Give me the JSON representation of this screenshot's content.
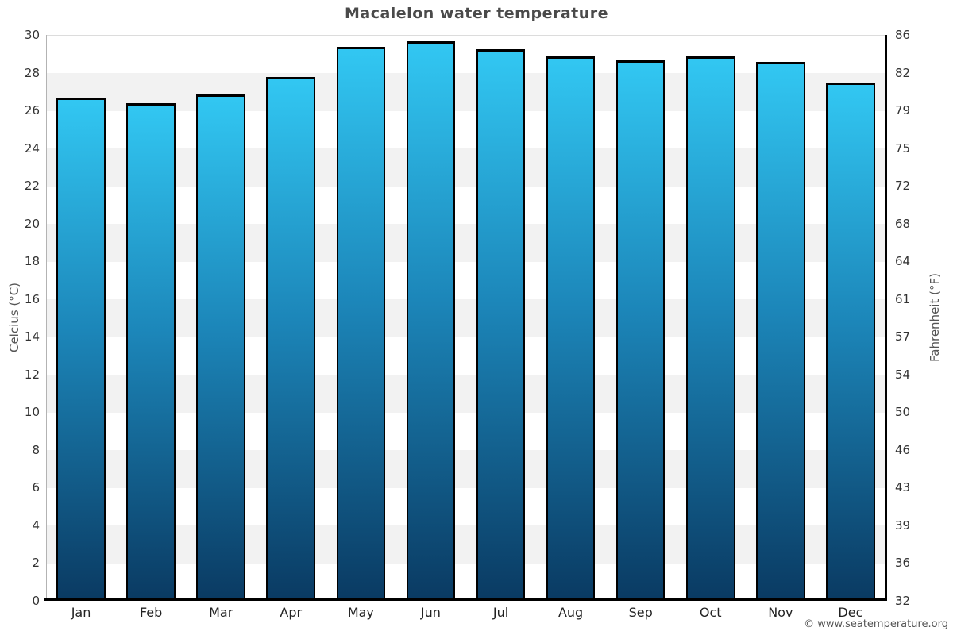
{
  "page": {
    "copyright": "© www.seatemperature.org"
  },
  "axes": {
    "left_label": "Celcius (°C)",
    "right_label": "Fahrenheit (°F)",
    "celsius_ticks": [
      "30",
      "28",
      "26",
      "24",
      "22",
      "20",
      "18",
      "16",
      "14",
      "12",
      "10",
      "8",
      "6",
      "4",
      "2",
      "0"
    ],
    "fahrenheit_ticks": [
      "86",
      "82",
      "79",
      "75",
      "72",
      "68",
      "64",
      "61",
      "57",
      "54",
      "50",
      "46",
      "43",
      "39",
      "36",
      "32"
    ]
  },
  "chart_data": {
    "type": "bar",
    "title": "Macalelon water temperature",
    "categories": [
      "Jan",
      "Feb",
      "Mar",
      "Apr",
      "May",
      "Jun",
      "Jul",
      "Aug",
      "Sep",
      "Oct",
      "Nov",
      "Dec"
    ],
    "values": [
      26.7,
      26.4,
      26.9,
      27.8,
      29.4,
      29.7,
      29.3,
      28.9,
      28.7,
      28.9,
      28.6,
      27.5
    ],
    "unit": "°C",
    "ylabel_left": "Celcius (°C)",
    "ylabel_right": "Fahrenheit (°F)",
    "ylim": [
      0,
      30
    ],
    "band_step": 2,
    "grid": "alternating-horizontal-bands",
    "legend": "none",
    "colors": {
      "bar_top": "#32c7f2",
      "bar_mid": "#1c86b9",
      "bar_bottom": "#0a3a62",
      "band_gray": "#f2f2f2",
      "band_white": "#ffffff",
      "axis_left": "#b3b3b3",
      "axis_dark": "#000000",
      "title": "#4a4a4a",
      "tick": "#333333",
      "axis_label": "#555555",
      "copyright": "#555555"
    }
  }
}
